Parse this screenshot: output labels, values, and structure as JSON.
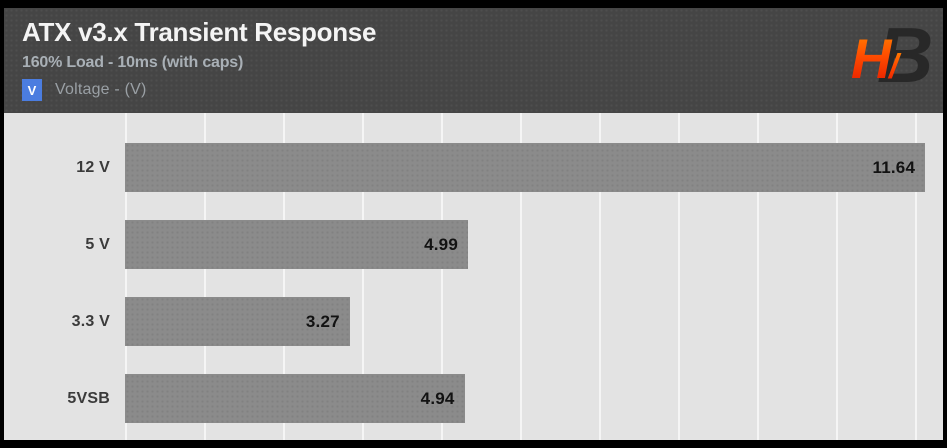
{
  "header": {
    "title": "ATX v3.x Transient Response",
    "subtitle": "160% Load - 10ms (with caps)",
    "legend": {
      "swatch_letter": "V",
      "label": "Voltage - (V)"
    },
    "logo_text": "HB"
  },
  "colors": {
    "accent_blue": "#4b7de0",
    "bar_gray": "#8b8b8b",
    "header_bg": "#454545",
    "chart_bg": "#e3e3e3",
    "gridline": "rgba(255,255,255,0.65)",
    "logo_gradient_top": "#ff8a00",
    "logo_gradient_bottom": "#e31500"
  },
  "chart_data": {
    "type": "bar",
    "orientation": "horizontal",
    "title": "ATX v3.x Transient Response",
    "subtitle": "160% Load - 10ms (with caps)",
    "legend_entries": [
      "Voltage - (V)"
    ],
    "categories": [
      "12 V",
      "5 V",
      "3.3 V",
      "5VSB"
    ],
    "values": [
      11.64,
      4.99,
      3.27,
      4.94
    ],
    "value_labels": [
      "11.64",
      "4.99",
      "3.27",
      "4.94"
    ],
    "xlim": [
      0,
      11.9
    ],
    "grid": "vertical-only",
    "gridline_count": 11,
    "value_label_position": "inside-end",
    "legend_position": "top-left"
  }
}
